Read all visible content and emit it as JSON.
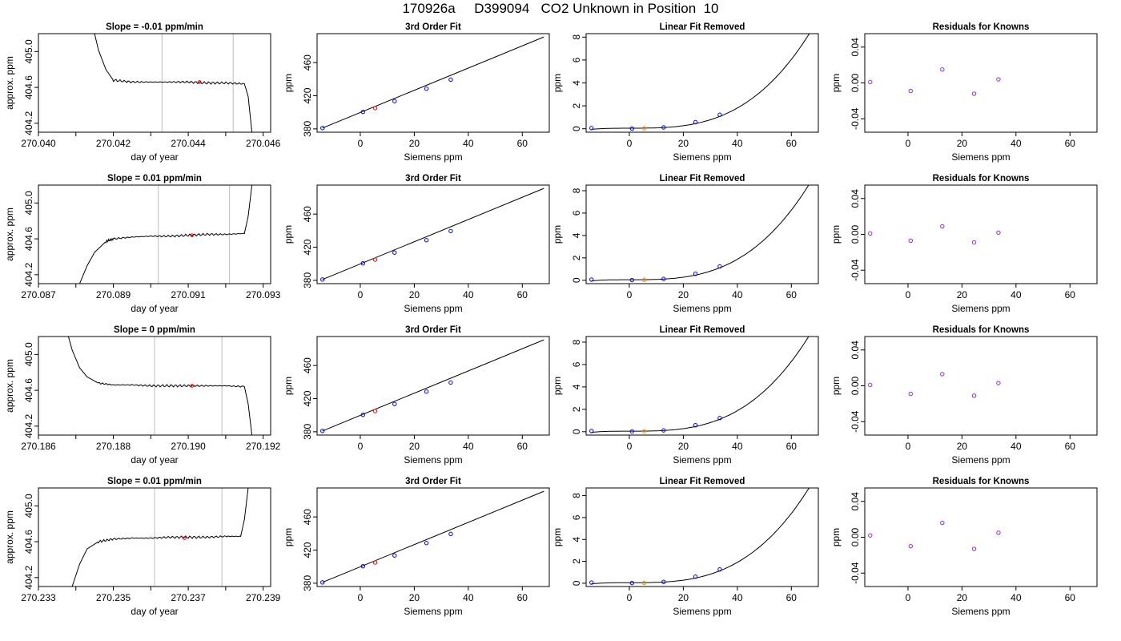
{
  "title": "170926a     D399094   CO2 Unknown in Position  10",
  "colors": {
    "trace": "#000000",
    "vline": "#c8c8c8",
    "unknown_red": "#ff0000",
    "unknown_orange": "#ff8c00",
    "known_blue": "#0000ff",
    "resid": "#8a2be2"
  },
  "chart_data": [
    {
      "id": "r0c0",
      "type": "line",
      "title": "Slope =  -0.01  ppm/min",
      "xlabel": "day of year",
      "ylabel": "approx. ppm",
      "xlim": [
        270.04,
        270.0462
      ],
      "ylim": [
        404.1,
        405.2
      ],
      "xticks": [
        270.04,
        270.041,
        270.042,
        270.043,
        270.044,
        270.045,
        270.046
      ],
      "xtick_labels": [
        "270.040",
        "",
        "270.042",
        "",
        "270.044",
        "",
        "270.046"
      ],
      "yticks": [
        404.2,
        404.6,
        405.0
      ],
      "ytick_labels": [
        "404.2",
        "404.6",
        "405.0"
      ],
      "vlines": [
        270.0433,
        270.0452
      ],
      "marker": {
        "x": 270.0443,
        "y": 404.66
      },
      "trace": {
        "x": [
          270.0415,
          270.0416,
          270.0418,
          270.042,
          270.0425,
          270.043,
          270.0435,
          270.044,
          270.0445,
          270.045,
          270.0455,
          270.0456,
          270.0457
        ],
        "y": [
          405.2,
          405.02,
          404.8,
          404.68,
          404.66,
          404.66,
          404.66,
          404.66,
          404.65,
          404.65,
          404.64,
          404.5,
          404.1
        ]
      }
    },
    {
      "id": "r0c1",
      "type": "line",
      "title": "3rd Order Fit",
      "xlabel": "Siemens ppm",
      "ylabel": "ppm",
      "xlim": [
        -16,
        70
      ],
      "ylim": [
        376,
        495
      ],
      "xticks": [
        0,
        20,
        40,
        60
      ],
      "xtick_labels": [
        "0",
        "20",
        "40",
        "60"
      ],
      "yticks": [
        380,
        420,
        460
      ],
      "ytick_labels": [
        "380",
        "420",
        "460"
      ],
      "curve": {
        "x": [
          -14,
          68
        ],
        "y": [
          381,
          491
        ]
      },
      "knowns": {
        "x": [
          -14,
          1,
          12.7,
          24.5,
          33.5
        ],
        "y": [
          381,
          400.5,
          413.5,
          428.5,
          439.5
        ]
      },
      "unknown": {
        "x": [
          5.5
        ],
        "y": [
          405
        ]
      }
    },
    {
      "id": "r0c2",
      "type": "line",
      "title": "Linear Fit Removed",
      "xlabel": "Siemens ppm",
      "ylabel": "ppm",
      "xlim": [
        -16,
        70
      ],
      "ylim": [
        -0.3,
        8.3
      ],
      "xticks": [
        0,
        20,
        40,
        60
      ],
      "xtick_labels": [
        "0",
        "20",
        "40",
        "60"
      ],
      "yticks": [
        0,
        2,
        4,
        6,
        8
      ],
      "ytick_labels": [
        "0",
        "2",
        "4",
        "6",
        "8"
      ],
      "curve_coef": [
        0.05,
        0.0004,
        -5e-05,
        2.85e-05
      ],
      "knowns": {
        "x": [
          -14,
          1,
          12.7,
          24.5,
          33.5
        ],
        "y": [
          0.06,
          0.02,
          0.12,
          0.58,
          1.22
        ]
      },
      "unknown": {
        "x": [
          5.5
        ],
        "y": [
          0.04
        ]
      }
    },
    {
      "id": "r0c3",
      "type": "scatter",
      "title": "Residuals for Knowns",
      "xlabel": "Siemens ppm",
      "ylabel": "ppm",
      "xlim": [
        -16,
        70
      ],
      "ylim": [
        -0.055,
        0.055
      ],
      "xticks": [
        0,
        20,
        40,
        60
      ],
      "xtick_labels": [
        "0",
        "20",
        "40",
        "60"
      ],
      "yticks": [
        -0.04,
        0,
        0.04
      ],
      "ytick_labels": [
        "-0.04",
        "0.00",
        "0.04"
      ],
      "points": {
        "x": [
          -14,
          1,
          12.7,
          24.5,
          33.5
        ],
        "y": [
          0.001,
          -0.009,
          0.015,
          -0.012,
          0.004
        ]
      }
    },
    {
      "id": "r1c0",
      "type": "line",
      "title": "Slope =  0.01  ppm/min",
      "xlabel": "day of year",
      "ylabel": "approx. ppm",
      "xlim": [
        270.087,
        270.0932
      ],
      "ylim": [
        404.1,
        405.2
      ],
      "xticks": [
        270.087,
        270.088,
        270.089,
        270.09,
        270.091,
        270.092,
        270.093
      ],
      "xtick_labels": [
        "270.087",
        "",
        "270.089",
        "",
        "270.091",
        "",
        "270.093"
      ],
      "yticks": [
        404.2,
        404.6,
        405.0
      ],
      "ytick_labels": [
        "404.2",
        "404.6",
        "405.0"
      ],
      "vlines": [
        270.0902,
        270.0921
      ],
      "marker": {
        "x": 270.0911,
        "y": 404.64
      },
      "trace": {
        "x": [
          270.0881,
          270.0883,
          270.0885,
          270.0888,
          270.089,
          270.0895,
          270.09,
          270.0905,
          270.091,
          270.0915,
          270.092,
          270.0925,
          270.0926,
          270.0927
        ],
        "y": [
          404.1,
          404.3,
          404.45,
          404.57,
          404.6,
          404.62,
          404.63,
          404.63,
          404.64,
          404.65,
          404.65,
          404.66,
          404.85,
          405.2
        ]
      }
    },
    {
      "id": "r1c1",
      "type": "line",
      "title": "3rd Order Fit",
      "xlabel": "Siemens ppm",
      "ylabel": "ppm",
      "xlim": [
        -16,
        70
      ],
      "ylim": [
        376,
        495
      ],
      "xticks": [
        0,
        20,
        40,
        60
      ],
      "xtick_labels": [
        "0",
        "20",
        "40",
        "60"
      ],
      "yticks": [
        380,
        420,
        460
      ],
      "ytick_labels": [
        "380",
        "420",
        "460"
      ],
      "curve": {
        "x": [
          -14,
          68
        ],
        "y": [
          381,
          491
        ]
      },
      "knowns": {
        "x": [
          -14,
          1,
          12.7,
          24.5,
          33.5
        ],
        "y": [
          381,
          400.5,
          413.5,
          428.5,
          439.5
        ]
      },
      "unknown": {
        "x": [
          5.5
        ],
        "y": [
          405
        ]
      }
    },
    {
      "id": "r1c2",
      "type": "line",
      "title": "Linear Fit Removed",
      "xlabel": "Siemens ppm",
      "ylabel": "ppm",
      "xlim": [
        -16,
        70
      ],
      "ylim": [
        -0.3,
        8.5
      ],
      "xticks": [
        0,
        20,
        40,
        60
      ],
      "xtick_labels": [
        "0",
        "20",
        "40",
        "60"
      ],
      "yticks": [
        0,
        2,
        4,
        6,
        8
      ],
      "ytick_labels": [
        "0",
        "2",
        "4",
        "6",
        "8"
      ],
      "curve_coef": [
        0.05,
        0.0004,
        -5e-05,
        2.95e-05
      ],
      "knowns": {
        "x": [
          -14,
          1,
          12.7,
          24.5,
          33.5
        ],
        "y": [
          0.06,
          0.02,
          0.12,
          0.58,
          1.24
        ]
      },
      "unknown": {
        "x": [
          5.5
        ],
        "y": [
          0.04
        ]
      }
    },
    {
      "id": "r1c3",
      "type": "scatter",
      "title": "Residuals for Knowns",
      "xlabel": "Siemens ppm",
      "ylabel": "ppm",
      "xlim": [
        -16,
        70
      ],
      "ylim": [
        -0.055,
        0.055
      ],
      "xticks": [
        0,
        20,
        40,
        60
      ],
      "xtick_labels": [
        "0",
        "20",
        "40",
        "60"
      ],
      "yticks": [
        -0.04,
        0,
        0.04
      ],
      "ytick_labels": [
        "-0.04",
        "0.00",
        "0.04"
      ],
      "points": {
        "x": [
          -14,
          1,
          12.7,
          24.5,
          33.5
        ],
        "y": [
          0.001,
          -0.007,
          0.009,
          -0.009,
          0.002
        ]
      }
    },
    {
      "id": "r2c0",
      "type": "line",
      "title": "Slope =  0  ppm/min",
      "xlabel": "day of year",
      "ylabel": "approx. ppm",
      "xlim": [
        270.186,
        270.1922
      ],
      "ylim": [
        404.1,
        405.2
      ],
      "xticks": [
        270.186,
        270.187,
        270.188,
        270.189,
        270.19,
        270.191,
        270.192
      ],
      "xtick_labels": [
        "270.186",
        "",
        "270.188",
        "",
        "270.190",
        "",
        "270.192"
      ],
      "yticks": [
        404.2,
        404.6,
        405.0
      ],
      "ytick_labels": [
        "404.2",
        "404.6",
        "405.0"
      ],
      "vlines": [
        270.1891,
        270.1909
      ],
      "marker": {
        "x": 270.1901,
        "y": 404.65
      },
      "trace": {
        "x": [
          270.1868,
          270.1869,
          270.1871,
          270.1873,
          270.1876,
          270.188,
          270.1885,
          270.189,
          270.1895,
          270.19,
          270.1905,
          270.191,
          270.1915,
          270.1916,
          270.1917
        ],
        "y": [
          405.2,
          405.05,
          404.85,
          404.75,
          404.68,
          404.66,
          404.66,
          404.65,
          404.65,
          404.65,
          404.65,
          404.65,
          404.64,
          404.45,
          404.1
        ]
      }
    },
    {
      "id": "r2c1",
      "type": "line",
      "title": "3rd Order Fit",
      "xlabel": "Siemens ppm",
      "ylabel": "ppm",
      "xlim": [
        -16,
        70
      ],
      "ylim": [
        376,
        495
      ],
      "xticks": [
        0,
        20,
        40,
        60
      ],
      "xtick_labels": [
        "0",
        "20",
        "40",
        "60"
      ],
      "yticks": [
        380,
        420,
        460
      ],
      "ytick_labels": [
        "380",
        "420",
        "460"
      ],
      "curve": {
        "x": [
          -14,
          68
        ],
        "y": [
          381,
          491
        ]
      },
      "knowns": {
        "x": [
          -14,
          1,
          12.7,
          24.5,
          33.5
        ],
        "y": [
          381,
          400.5,
          413.5,
          428.5,
          439.5
        ]
      },
      "unknown": {
        "x": [
          5.5
        ],
        "y": [
          405
        ]
      }
    },
    {
      "id": "r2c2",
      "type": "line",
      "title": "Linear Fit Removed",
      "xlabel": "Siemens ppm",
      "ylabel": "ppm",
      "xlim": [
        -16,
        70
      ],
      "ylim": [
        -0.3,
        8.5
      ],
      "xticks": [
        0,
        20,
        40,
        60
      ],
      "xtick_labels": [
        "0",
        "20",
        "40",
        "60"
      ],
      "yticks": [
        0,
        2,
        4,
        6,
        8
      ],
      "ytick_labels": [
        "0",
        "2",
        "4",
        "6",
        "8"
      ],
      "curve_coef": [
        0.05,
        0.0004,
        -5e-05,
        2.95e-05
      ],
      "knowns": {
        "x": [
          -14,
          1,
          12.7,
          24.5,
          33.5
        ],
        "y": [
          0.06,
          0.02,
          0.12,
          0.58,
          1.22
        ]
      },
      "unknown": {
        "x": [
          5.5
        ],
        "y": [
          0.04
        ]
      }
    },
    {
      "id": "r2c3",
      "type": "scatter",
      "title": "Residuals for Knowns",
      "xlabel": "Siemens ppm",
      "ylabel": "ppm",
      "xlim": [
        -16,
        70
      ],
      "ylim": [
        -0.055,
        0.055
      ],
      "xticks": [
        0,
        20,
        40,
        60
      ],
      "xtick_labels": [
        "0",
        "20",
        "40",
        "60"
      ],
      "yticks": [
        -0.04,
        0,
        0.04
      ],
      "ytick_labels": [
        "-0.04",
        "0.00",
        "0.04"
      ],
      "points": {
        "x": [
          -14,
          1,
          12.7,
          24.5,
          33.5
        ],
        "y": [
          0.001,
          -0.009,
          0.013,
          -0.011,
          0.003
        ]
      }
    },
    {
      "id": "r3c0",
      "type": "line",
      "title": "Slope =  0.01  ppm/min",
      "xlabel": "day of year",
      "ylabel": "approx. ppm",
      "xlim": [
        270.233,
        270.2392
      ],
      "ylim": [
        404.1,
        405.2
      ],
      "xticks": [
        270.233,
        270.234,
        270.235,
        270.236,
        270.237,
        270.238,
        270.239
      ],
      "xtick_labels": [
        "270.233",
        "",
        "270.235",
        "",
        "270.237",
        "",
        "270.239"
      ],
      "yticks": [
        404.2,
        404.6,
        405.0
      ],
      "ytick_labels": [
        "404.2",
        "404.6",
        "405.0"
      ],
      "vlines": [
        270.2361,
        270.2379
      ],
      "marker": {
        "x": 270.2369,
        "y": 404.64
      },
      "trace": {
        "x": [
          270.2339,
          270.2341,
          270.2343,
          270.2346,
          270.235,
          270.2355,
          270.236,
          270.2365,
          270.237,
          270.2375,
          270.238,
          270.2384,
          270.2385,
          270.2386
        ],
        "y": [
          404.1,
          404.35,
          404.52,
          404.6,
          404.63,
          404.64,
          404.64,
          404.65,
          404.65,
          404.65,
          404.66,
          404.66,
          404.85,
          405.2
        ]
      }
    },
    {
      "id": "r3c1",
      "type": "line",
      "title": "3rd Order Fit",
      "xlabel": "Siemens ppm",
      "ylabel": "ppm",
      "xlim": [
        -16,
        70
      ],
      "ylim": [
        376,
        495
      ],
      "xticks": [
        0,
        20,
        40,
        60
      ],
      "xtick_labels": [
        "0",
        "20",
        "40",
        "60"
      ],
      "yticks": [
        380,
        420,
        460
      ],
      "ytick_labels": [
        "380",
        "420",
        "460"
      ],
      "curve": {
        "x": [
          -14,
          68
        ],
        "y": [
          381,
          491
        ]
      },
      "knowns": {
        "x": [
          -14,
          1,
          12.7,
          24.5,
          33.5
        ],
        "y": [
          381,
          400.5,
          413.5,
          428.5,
          439.5
        ]
      },
      "unknown": {
        "x": [
          5.5
        ],
        "y": [
          405
        ]
      }
    },
    {
      "id": "r3c2",
      "type": "line",
      "title": "Linear Fit Removed",
      "xlabel": "Siemens ppm",
      "ylabel": "ppm",
      "xlim": [
        -16,
        70
      ],
      "ylim": [
        -0.3,
        8.7
      ],
      "xticks": [
        0,
        20,
        40,
        60
      ],
      "xtick_labels": [
        "0",
        "20",
        "40",
        "60"
      ],
      "yticks": [
        0,
        2,
        4,
        6,
        8
      ],
      "ytick_labels": [
        "0",
        "2",
        "4",
        "6",
        "8"
      ],
      "curve_coef": [
        0.05,
        0.0004,
        -5e-05,
        3e-05
      ],
      "knowns": {
        "x": [
          -14,
          1,
          12.7,
          24.5,
          33.5
        ],
        "y": [
          0.06,
          0.02,
          0.12,
          0.6,
          1.26
        ]
      },
      "unknown": {
        "x": [
          5.5
        ],
        "y": [
          0.04
        ]
      }
    },
    {
      "id": "r3c3",
      "type": "scatter",
      "title": "Residuals for Knowns",
      "xlabel": "Siemens ppm",
      "ylabel": "ppm",
      "xlim": [
        -16,
        70
      ],
      "ylim": [
        -0.055,
        0.055
      ],
      "xticks": [
        0,
        20,
        40,
        60
      ],
      "xtick_labels": [
        "0",
        "20",
        "40",
        "60"
      ],
      "yticks": [
        -0.04,
        0,
        0.04
      ],
      "ytick_labels": [
        "-0.04",
        "0.00",
        "0.04"
      ],
      "points": {
        "x": [
          -14,
          1,
          12.7,
          24.5,
          33.5
        ],
        "y": [
          0.002,
          -0.01,
          0.016,
          -0.013,
          0.005
        ]
      }
    }
  ]
}
